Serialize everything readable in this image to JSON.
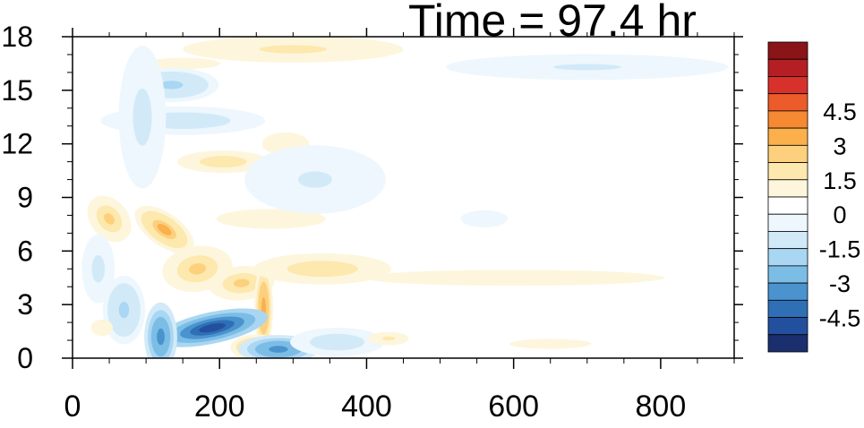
{
  "chart_data": {
    "type": "heatmap",
    "title": "Time = 97.4 hr",
    "xlabel": "",
    "ylabel": "",
    "xlim": [
      0,
      900
    ],
    "ylim": [
      0,
      18
    ],
    "x_ticks": [
      0,
      200,
      400,
      600,
      800
    ],
    "x_tick_labels": [
      "0",
      "200",
      "400",
      "600",
      "800"
    ],
    "y_ticks": [
      0,
      3,
      6,
      9,
      12,
      15,
      18
    ],
    "y_tick_labels": [
      "0",
      "3",
      "6",
      "9",
      "12",
      "15",
      "18"
    ],
    "grid": false,
    "colorbar": {
      "placement": "right",
      "levels": [
        -5.25,
        -4.5,
        -3.75,
        -3,
        -2.25,
        -1.5,
        -0.75,
        0,
        0.75,
        1.5,
        2.25,
        3,
        3.75,
        4.5,
        5.25
      ],
      "tick_labels": [
        "4.5",
        "3",
        "1.5",
        "0",
        "-1.5",
        "-3",
        "-4.5"
      ],
      "tick_values": [
        4.5,
        3,
        1.5,
        0,
        -1.5,
        -3,
        -4.5
      ],
      "colors": [
        "#1b2f6e",
        "#23509e",
        "#2f6fb6",
        "#4a93cf",
        "#7cbde6",
        "#a9d6f2",
        "#d2eaf8",
        "#edf7fd",
        "#ffffff",
        "#fdf6dd",
        "#fde8ad",
        "#fcd07d",
        "#fbb04b",
        "#f58a33",
        "#ec5b2a",
        "#d8312b",
        "#b41f24",
        "#8a1418"
      ]
    },
    "features": [
      {
        "x": 50,
        "y": 7.8,
        "value": 2.6,
        "sx": 16,
        "sy": 0.9,
        "tilt": -40
      },
      {
        "x": 125,
        "y": 7.2,
        "value": 3.2,
        "sx": 14,
        "sy": 1.2,
        "tilt": -55
      },
      {
        "x": 170,
        "y": 5.0,
        "value": 2.4,
        "sx": 30,
        "sy": 0.8,
        "tilt": -8
      },
      {
        "x": 230,
        "y": 4.2,
        "value": 2.6,
        "sx": 28,
        "sy": 0.6,
        "tilt": -5
      },
      {
        "x": 260,
        "y": 2.8,
        "value": 3.4,
        "sx": 8,
        "sy": 1.6,
        "tilt": 0
      },
      {
        "x": 250,
        "y": 0.6,
        "value": 3.0,
        "sx": 22,
        "sy": 0.45,
        "tilt": 0
      },
      {
        "x": 190,
        "y": 1.7,
        "value": -4.8,
        "sx": 48,
        "sy": 0.55,
        "tilt": -12
      },
      {
        "x": 120,
        "y": 1.2,
        "value": -3.4,
        "sx": 14,
        "sy": 1.2,
        "tilt": 0
      },
      {
        "x": 280,
        "y": 0.5,
        "value": -3.4,
        "sx": 34,
        "sy": 0.5,
        "tilt": 0
      },
      {
        "x": 70,
        "y": 2.7,
        "value": -1.6,
        "sx": 18,
        "sy": 1.2,
        "tilt": 0
      },
      {
        "x": 360,
        "y": 0.9,
        "value": -1.2,
        "sx": 40,
        "sy": 0.5,
        "tilt": 0
      },
      {
        "x": 430,
        "y": 1.1,
        "value": 1.6,
        "sx": 22,
        "sy": 0.3,
        "tilt": 0
      },
      {
        "x": 340,
        "y": 5.0,
        "value": 2.0,
        "sx": 75,
        "sy": 0.7,
        "tilt": 0
      },
      {
        "x": 600,
        "y": 4.5,
        "value": 0.9,
        "sx": 320,
        "sy": 0.7,
        "tilt": 0
      },
      {
        "x": 270,
        "y": 7.8,
        "value": 1.4,
        "sx": 80,
        "sy": 0.6,
        "tilt": 0
      },
      {
        "x": 205,
        "y": 11.0,
        "value": 1.9,
        "sx": 50,
        "sy": 0.5,
        "tilt": 0
      },
      {
        "x": 150,
        "y": 13.3,
        "value": -1.3,
        "sx": 70,
        "sy": 0.5,
        "tilt": 0
      },
      {
        "x": 300,
        "y": 17.3,
        "value": 1.6,
        "sx": 120,
        "sy": 0.6,
        "tilt": 0
      },
      {
        "x": 150,
        "y": 16.5,
        "value": 1.1,
        "sx": 80,
        "sy": 0.5,
        "tilt": 0
      },
      {
        "x": 135,
        "y": 15.3,
        "value": -1.5,
        "sx": 40,
        "sy": 0.6,
        "tilt": 0
      },
      {
        "x": 290,
        "y": 12.0,
        "value": 0.9,
        "sx": 50,
        "sy": 1.0,
        "tilt": 0
      },
      {
        "x": 95,
        "y": 13.5,
        "value": -0.9,
        "sx": 20,
        "sy": 2.5,
        "tilt": 0
      },
      {
        "x": 330,
        "y": 10.0,
        "value": -0.8,
        "sx": 60,
        "sy": 1.2,
        "tilt": 0
      },
      {
        "x": 700,
        "y": 16.3,
        "value": -0.8,
        "sx": 120,
        "sy": 0.45,
        "tilt": 0
      },
      {
        "x": 650,
        "y": 0.8,
        "value": 1.2,
        "sx": 60,
        "sy": 0.3,
        "tilt": 0
      },
      {
        "x": 560,
        "y": 7.8,
        "value": -0.6,
        "sx": 20,
        "sy": 0.3,
        "tilt": 0
      },
      {
        "x": 40,
        "y": 1.7,
        "value": 1.2,
        "sx": 16,
        "sy": 0.5,
        "tilt": 0
      },
      {
        "x": 35,
        "y": 5.0,
        "value": -0.9,
        "sx": 14,
        "sy": 1.2,
        "tilt": 0
      }
    ]
  }
}
